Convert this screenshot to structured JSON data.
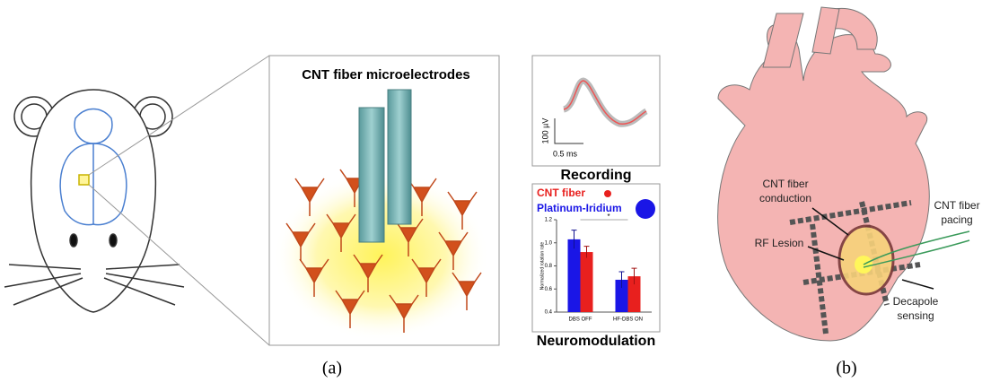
{
  "panel_a": {
    "title": "CNT fiber microelectrodes",
    "recording": {
      "label": "Recording",
      "y_scale": "100 µV",
      "x_scale": "0.5 ms"
    },
    "neuromodulation_label": "Neuromodulation",
    "caption": "(a)"
  },
  "chart_data": {
    "type": "bar",
    "y_label": "Normalized rotation rate",
    "categories": [
      "DBS OFF",
      "HF-DBS ON"
    ],
    "series": [
      {
        "name": "Platinum-Iridium",
        "color": "#1a16e6",
        "values": [
          1.03,
          0.68
        ],
        "errors": [
          0.08,
          0.07
        ]
      },
      {
        "name": "CNT fiber",
        "color": "#e8201e",
        "values": [
          0.92,
          0.71
        ],
        "errors": [
          0.05,
          0.07
        ]
      }
    ],
    "annotation": "*",
    "ylim": [
      0.4,
      1.2
    ],
    "yticks": [
      0.4,
      0.6,
      0.8,
      {
        "value": 1,
        "label": "1.0"
      },
      1.2
    ]
  },
  "panel_b": {
    "conduction": [
      "CNT fiber",
      "conduction"
    ],
    "lesion": "RF Lesion",
    "pacing": [
      "CNT fiber",
      "pacing"
    ],
    "sensing": [
      "Decapole",
      "sensing"
    ],
    "caption": "(b)"
  }
}
